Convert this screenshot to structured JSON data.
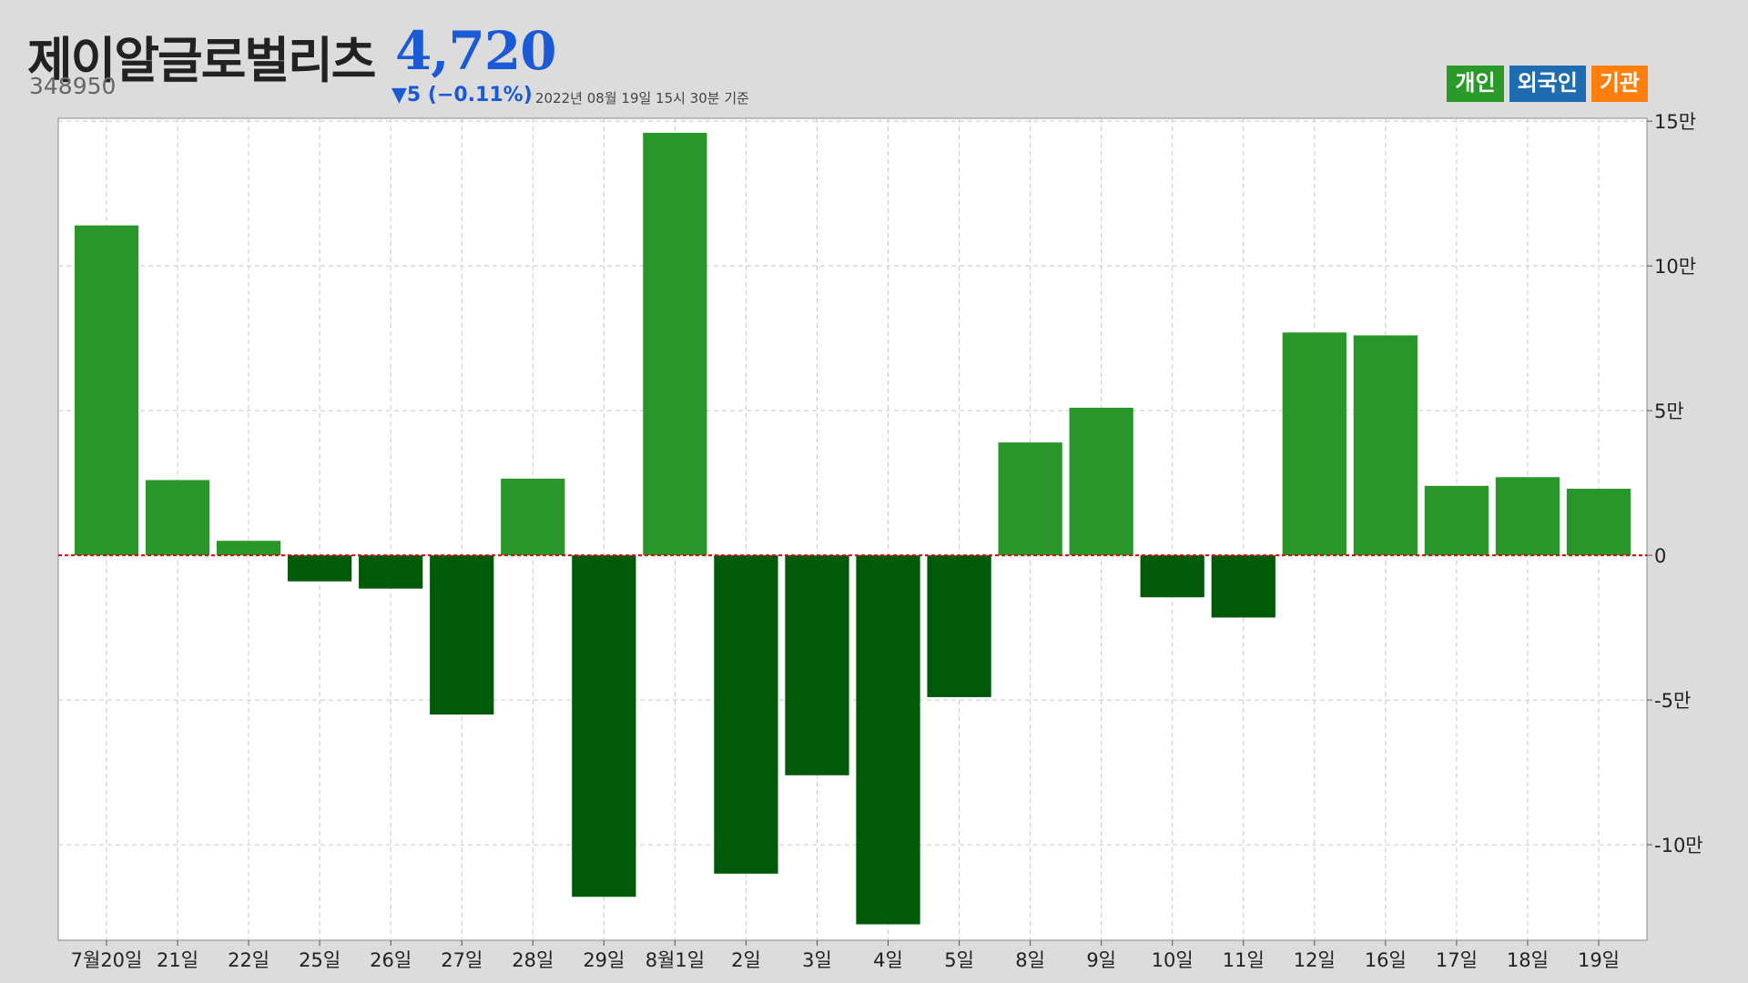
{
  "header": {
    "name": "제이알글로벌리츠",
    "code": "348950",
    "price": "4,720",
    "change": "▼5 (−0.11%)",
    "timestamp": "2022년 08월 19일 15시 30분 기준"
  },
  "legend": [
    {
      "label": "개인",
      "color": "#2a9a2a"
    },
    {
      "label": "외국인",
      "color": "#1f6cb0"
    },
    {
      "label": "기관",
      "color": "#ff7f0e"
    }
  ],
  "colors": {
    "positive": "#289628",
    "negative": "#005a0a",
    "zero_line": "#e00000",
    "grid": "#c8c8c8"
  },
  "chart_data": {
    "type": "bar",
    "categories": [
      "7월20일",
      "21일",
      "22일",
      "25일",
      "26일",
      "27일",
      "28일",
      "29일",
      "8월1일",
      "2일",
      "3일",
      "4일",
      "5일",
      "8일",
      "9일",
      "10일",
      "11일",
      "12일",
      "16일",
      "17일",
      "18일",
      "19일"
    ],
    "series": [
      {
        "values": [
          114000,
          26000,
          5000,
          -9000,
          -11500,
          -55000,
          26500,
          -118000,
          146000,
          -110000,
          -76000,
          -127500,
          -49000,
          39000,
          51000,
          -14500,
          -21500,
          77000,
          76000,
          24000,
          27000,
          23000
        ]
      }
    ],
    "ylim": [
      -133000,
      151000
    ],
    "yticks": [
      150000,
      100000,
      50000,
      0,
      -50000,
      -100000
    ],
    "ytick_labels": [
      "15만",
      "10만",
      "5만",
      "0",
      "-5만",
      "-10만"
    ],
    "ylabel_position": "right",
    "grid": true
  }
}
